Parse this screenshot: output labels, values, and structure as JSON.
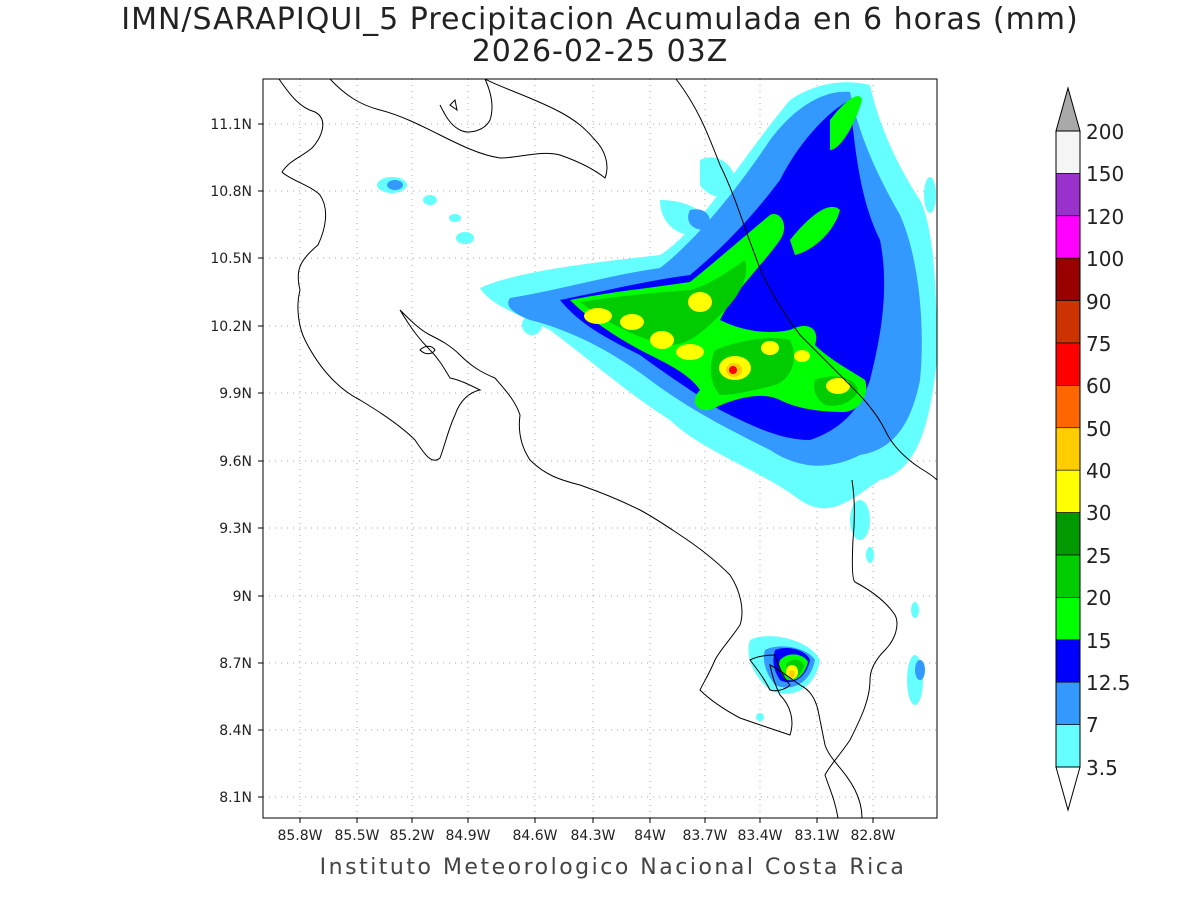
{
  "title": "IMN/SARAPIQUI_5 Precipitacion Acumulada en 6 horas (mm)",
  "subtitle": "2026-02-25 03Z",
  "credit": "Instituto Meteorologico Nacional Costa Rica",
  "map": {
    "lon_range": [
      -86.05,
      -82.45
    ],
    "lat_range": [
      8.0,
      11.3
    ],
    "lon_ticks": [
      "85.8W",
      "85.5W",
      "85.2W",
      "84.9W",
      "84.6W",
      "84.3W",
      "84W",
      "83.7W",
      "83.4W",
      "83.1W",
      "82.8W"
    ],
    "lat_ticks": [
      "11.1N",
      "10.8N",
      "10.5N",
      "10.2N",
      "9.9N",
      "9.6N",
      "9.3N",
      "9N",
      "8.7N",
      "8.4N",
      "8.1N"
    ]
  },
  "legend": {
    "labels": [
      "200",
      "150",
      "120",
      "100",
      "90",
      "75",
      "60",
      "50",
      "40",
      "30",
      "25",
      "20",
      "15",
      "12.5",
      "7",
      "3.5"
    ],
    "colors": [
      "#f5f5f5",
      "#9932cc",
      "#ff00ff",
      "#990000",
      "#cc3300",
      "#ff0000",
      "#ff6600",
      "#ffcc00",
      "#ffff00",
      "#009900",
      "#00cc00",
      "#00ff00",
      "#0000ff",
      "#3399ff",
      "#66ffff"
    ],
    "over_color": "#a9a9a9"
  }
}
